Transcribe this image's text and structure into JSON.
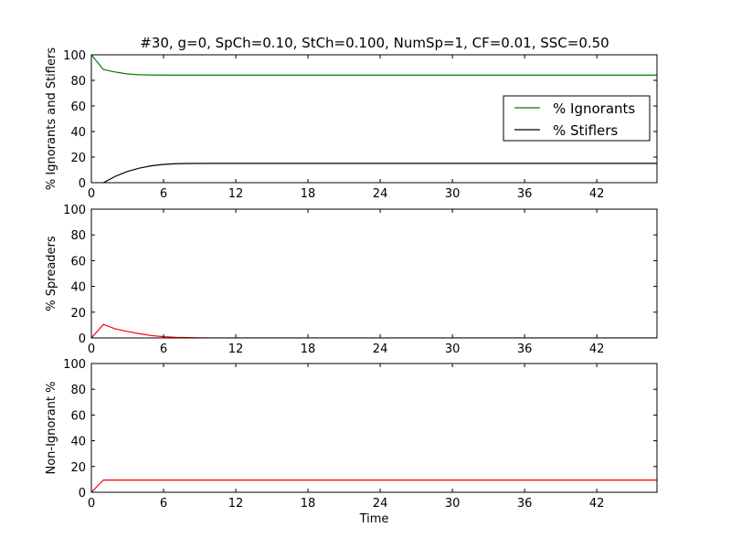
{
  "figure_title": "#30, g=0, SpCh=0.10, StCh=0.100, NumSp=1, CF=0.01, SSC=0.50",
  "chart_data": [
    {
      "type": "line",
      "title": "#30, g=0, SpCh=0.10, StCh=0.100, NumSp=1, CF=0.01, SSC=0.50",
      "xlabel": "",
      "ylabel": "% Ignorants and Stiflers",
      "xlim": [
        0,
        47
      ],
      "ylim": [
        0,
        100
      ],
      "xticks": [
        "0",
        "6",
        "12",
        "18",
        "24",
        "30",
        "36",
        "42"
      ],
      "yticks": [
        "0",
        "20",
        "40",
        "60",
        "80",
        "100"
      ],
      "grid": false,
      "legend_position": "right",
      "series": [
        {
          "name": "% Ignorants",
          "color": "#008000",
          "x": [
            0,
            1,
            2,
            3,
            4,
            5,
            6,
            7,
            8,
            10,
            12,
            47
          ],
          "y": [
            100,
            88.5,
            86.5,
            85,
            84.4,
            84.2,
            84.1,
            84.1,
            84.1,
            84.1,
            84.1,
            84.1
          ]
        },
        {
          "name": "% Stiflers",
          "color": "#000000",
          "x": [
            1,
            2,
            3,
            4,
            5,
            6,
            7,
            8,
            10,
            12,
            47
          ],
          "y": [
            0,
            5,
            8.8,
            11.4,
            13.2,
            14.3,
            14.8,
            15.0,
            15.1,
            15.1,
            15.1
          ]
        }
      ]
    },
    {
      "type": "line",
      "title": "",
      "xlabel": "",
      "ylabel": "% Spreaders",
      "xlim": [
        0,
        47
      ],
      "ylim": [
        0,
        100
      ],
      "xticks": [
        "0",
        "6",
        "12",
        "18",
        "24",
        "30",
        "36",
        "42"
      ],
      "yticks": [
        "0",
        "20",
        "40",
        "60",
        "80",
        "100"
      ],
      "grid": false,
      "series": [
        {
          "color": "#ff0000",
          "x": [
            0,
            1,
            2,
            3,
            4,
            5,
            6,
            7,
            8,
            9,
            10,
            12,
            47
          ],
          "y": [
            0,
            10.5,
            7,
            5,
            3.3,
            1.8,
            1.0,
            0.5,
            0.3,
            0.1,
            0,
            0,
            0
          ]
        }
      ]
    },
    {
      "type": "line",
      "title": "",
      "xlabel": "Time",
      "ylabel": "Non-Ignorant %",
      "xlim": [
        0,
        47
      ],
      "ylim": [
        0,
        100
      ],
      "xticks": [
        "0",
        "6",
        "12",
        "18",
        "24",
        "30",
        "36",
        "42"
      ],
      "yticks": [
        "0",
        "20",
        "40",
        "60",
        "80",
        "100"
      ],
      "grid": false,
      "series": [
        {
          "color": "#ff0000",
          "x": [
            0,
            1,
            2,
            47
          ],
          "y": [
            0,
            9.5,
            9.5,
            9.5
          ]
        }
      ]
    }
  ]
}
